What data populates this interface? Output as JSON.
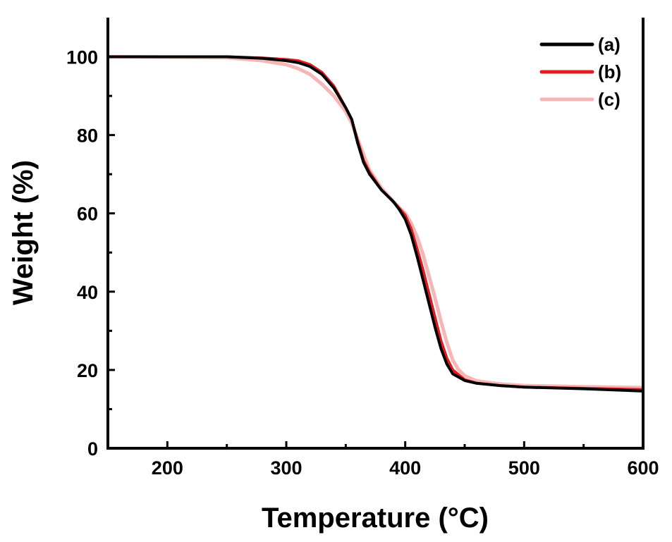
{
  "chart_data": {
    "type": "line",
    "title": "",
    "xlabel": "Temperature (°C)",
    "ylabel": "Weight (%)",
    "xlim": [
      150,
      600
    ],
    "ylim": [
      0,
      110
    ],
    "xticks": [
      200,
      300,
      400,
      500,
      600
    ],
    "xtick_labels": [
      "200",
      "300",
      "400",
      "500",
      "600"
    ],
    "xminor": [
      250,
      350,
      450,
      550
    ],
    "yticks": [
      0,
      20,
      40,
      60,
      80,
      100
    ],
    "ytick_labels": [
      "0",
      "20",
      "40",
      "60",
      "80",
      "100"
    ],
    "yminor": [
      10,
      30,
      50,
      70,
      90
    ],
    "grid": false,
    "legend_position": "top-right",
    "series": [
      {
        "name": "(a)",
        "color": "#000000",
        "x": [
          150,
          250,
          280,
          300,
          310,
          320,
          330,
          340,
          350,
          355,
          360,
          365,
          370,
          380,
          390,
          395,
          400,
          405,
          410,
          415,
          420,
          425,
          430,
          435,
          440,
          450,
          460,
          480,
          500,
          550,
          600
        ],
        "y": [
          100,
          100,
          99.6,
          99,
          98.5,
          97.5,
          95.5,
          92,
          87,
          84,
          78,
          73,
          70,
          66,
          63,
          61,
          58.5,
          54.5,
          49,
          43,
          37,
          31,
          25.5,
          21.5,
          19,
          17.3,
          16.6,
          16,
          15.6,
          15.2,
          14.6
        ]
      },
      {
        "name": "(b)",
        "color": "#e41a1c",
        "x": [
          150,
          250,
          280,
          300,
          310,
          320,
          330,
          340,
          350,
          355,
          360,
          365,
          370,
          380,
          390,
          400,
          405,
          410,
          415,
          420,
          425,
          430,
          435,
          440,
          450,
          460,
          480,
          500,
          550,
          600
        ],
        "y": [
          100,
          100,
          99.7,
          99.3,
          99,
          98,
          96,
          92.5,
          87,
          84,
          78.5,
          73.5,
          70.5,
          66,
          63,
          59.5,
          56,
          51,
          45.5,
          39.5,
          33.5,
          27.5,
          23,
          20,
          17.5,
          16.6,
          16,
          15.6,
          15.3,
          15
        ]
      },
      {
        "name": "(c)",
        "color": "#f7b6b6",
        "x": [
          150,
          250,
          280,
          300,
          310,
          320,
          330,
          340,
          350,
          355,
          360,
          365,
          370,
          380,
          390,
          400,
          405,
          410,
          415,
          420,
          425,
          430,
          435,
          440,
          445,
          450,
          460,
          480,
          500,
          550,
          600
        ],
        "y": [
          100,
          99.8,
          99,
          98,
          97,
          95.5,
          93,
          90,
          86,
          83,
          79,
          75,
          71,
          66.5,
          63,
          60,
          57.5,
          54,
          49.5,
          44,
          38.5,
          32.5,
          27,
          22.5,
          20,
          18.5,
          17.2,
          16.4,
          16,
          15.7,
          15.5
        ]
      }
    ]
  }
}
